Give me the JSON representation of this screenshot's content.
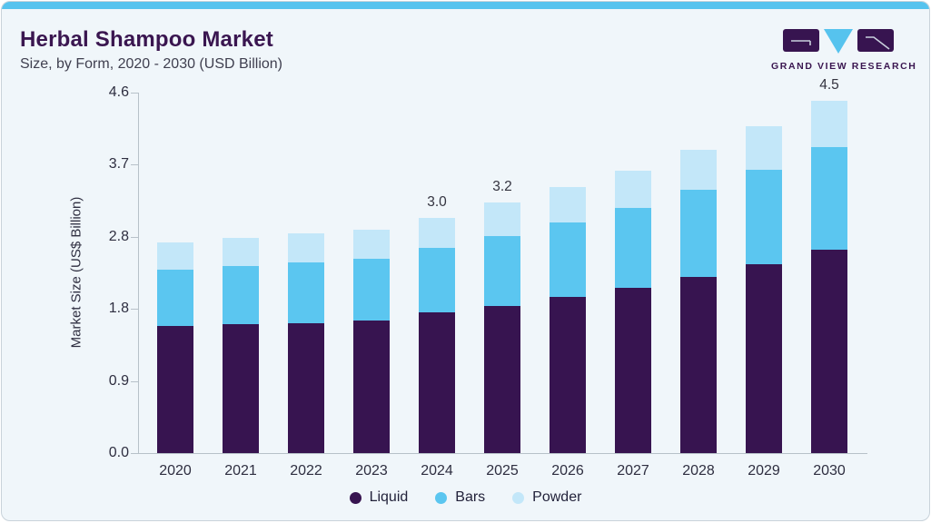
{
  "header": {
    "title": "Herbal Shampoo Market",
    "subtitle": "Size, by Form, 2020 - 2030 (USD Billion)",
    "logo_text": "GRAND VIEW RESEARCH"
  },
  "colors": {
    "accent_strip": "#56c3ee",
    "title_purple": "#3a1650",
    "card_background": "#f0f6fa",
    "card_border": "#c9d3da",
    "axis_gray": "#b7c1c9",
    "liquid": "#371450",
    "bars": "#5bc6f0",
    "powder": "#c3e7f9"
  },
  "chart_data": {
    "type": "bar",
    "stacked": true,
    "title": "Herbal Shampoo Market Size, by Form, 2020 - 2030 (USD Billion)",
    "categories": [
      "2020",
      "2021",
      "2022",
      "2023",
      "2024",
      "2025",
      "2026",
      "2027",
      "2028",
      "2029",
      "2030"
    ],
    "series": [
      {
        "name": "Liquid",
        "color": "#371450",
        "values": [
          1.62,
          1.65,
          1.66,
          1.69,
          1.8,
          1.88,
          1.99,
          2.11,
          2.25,
          2.41,
          2.59
        ]
      },
      {
        "name": "Bars",
        "color": "#5bc6f0",
        "values": [
          0.72,
          0.74,
          0.77,
          0.79,
          0.82,
          0.89,
          0.95,
          1.02,
          1.11,
          1.21,
          1.32
        ]
      },
      {
        "name": "Powder",
        "color": "#c3e7f9",
        "values": [
          0.35,
          0.36,
          0.37,
          0.37,
          0.38,
          0.43,
          0.46,
          0.47,
          0.51,
          0.55,
          0.59
        ]
      }
    ],
    "totals": [
      2.69,
      2.75,
      2.8,
      2.85,
      3.0,
      3.2,
      3.4,
      3.6,
      3.87,
      4.17,
      4.5
    ],
    "total_labels": [
      "",
      "",
      "",
      "",
      "3.0",
      "3.2",
      "",
      "",
      "",
      "",
      "4.5"
    ],
    "xlabel": "",
    "ylabel": "Market Size (US$ Billion)",
    "ylim": [
      0,
      4.6
    ],
    "yticks": {
      "labels": [
        "0.0",
        "0.9",
        "1.8",
        "2.8",
        "3.7",
        "4.6"
      ],
      "values": [
        0,
        0.92,
        1.84,
        2.76,
        3.68,
        4.6
      ]
    },
    "grid": false,
    "legend_position": "bottom"
  }
}
